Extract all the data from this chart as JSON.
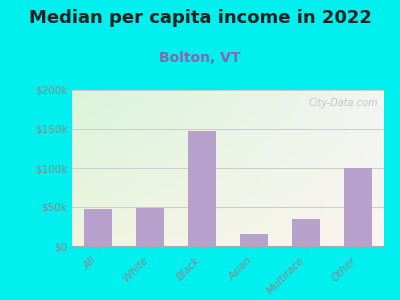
{
  "title": "Median per capita income in 2022",
  "subtitle": "Bolton, VT",
  "categories": [
    "All",
    "White",
    "Black",
    "Asian",
    "Multirace",
    "Other"
  ],
  "values": [
    47000,
    49000,
    148000,
    15000,
    34000,
    100000
  ],
  "bar_color": "#b8a0cc",
  "background_outer": "#00efef",
  "background_inner_top_left": "#d8f0d0",
  "background_inner_top_right": "#e8f0e8",
  "background_inner_bottom": "#f0f0e0",
  "ylim": [
    0,
    200000
  ],
  "yticks": [
    0,
    50000,
    100000,
    150000,
    200000
  ],
  "ytick_labels": [
    "$0",
    "$50k",
    "$100k",
    "$150k",
    "$200k"
  ],
  "title_fontsize": 13,
  "subtitle_fontsize": 10,
  "title_color": "#222222",
  "subtitle_color": "#8866aa",
  "tick_label_color": "#888888",
  "xtick_color": "#888888",
  "watermark": "City-Data.com",
  "grid_color": "#cccccc"
}
